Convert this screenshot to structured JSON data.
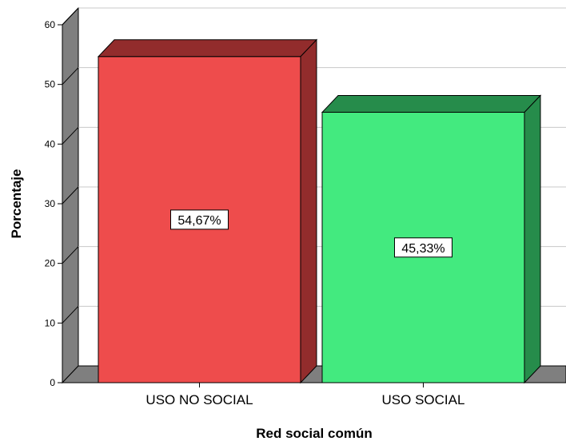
{
  "chart_data": {
    "type": "bar",
    "title": "",
    "xlabel": "Red social común",
    "ylabel": "Porcentaje",
    "categories": [
      "USO NO SOCIAL",
      "USO SOCIAL"
    ],
    "values": [
      54.67,
      45.33
    ],
    "data_labels": [
      "54,67%",
      "45,33%"
    ],
    "colors": [
      "#ee4c4c",
      "#43ea7f"
    ],
    "side_colors": [
      "#922c2c",
      "#268c4b"
    ],
    "ylim": [
      0,
      60
    ],
    "yticks": [
      "0",
      "10",
      "20",
      "30",
      "40",
      "50",
      "60"
    ],
    "grid": true,
    "three_d": true
  }
}
